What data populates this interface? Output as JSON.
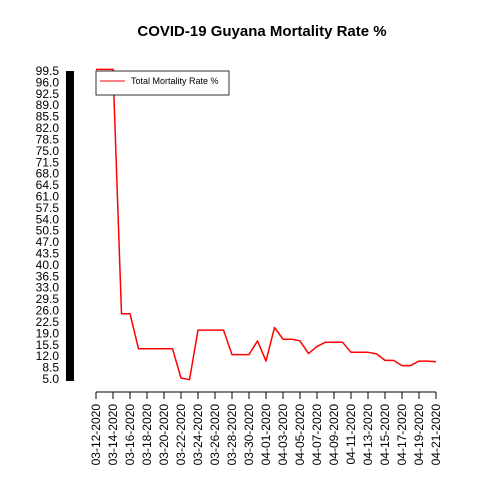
{
  "chart_data": {
    "type": "line",
    "title": "COVID-19 Guyana Mortality Rate %",
    "xlabel": "",
    "ylabel": "",
    "x": [
      "03-12-2020",
      "03-13-2020",
      "03-14-2020",
      "03-15-2020",
      "03-16-2020",
      "03-17-2020",
      "03-18-2020",
      "03-19-2020",
      "03-20-2020",
      "03-21-2020",
      "03-22-2020",
      "03-23-2020",
      "03-24-2020",
      "03-25-2020",
      "03-26-2020",
      "03-27-2020",
      "03-28-2020",
      "03-29-2020",
      "03-30-2020",
      "03-31-2020",
      "04-01-2020",
      "04-02-2020",
      "04-03-2020",
      "04-04-2020",
      "04-05-2020",
      "04-06-2020",
      "04-07-2020",
      "04-08-2020",
      "04-09-2020",
      "04-10-2020",
      "04-11-2020",
      "04-12-2020",
      "04-13-2020",
      "04-14-2020",
      "04-15-2020",
      "04-16-2020",
      "04-17-2020",
      "04-18-2020",
      "04-19-2020",
      "04-20-2020",
      "04-21-2020"
    ],
    "x_tick_labels": [
      "03-12-2020",
      "03-14-2020",
      "03-16-2020",
      "03-18-2020",
      "03-20-2020",
      "03-22-2020",
      "03-24-2020",
      "03-26-2020",
      "03-28-2020",
      "03-30-2020",
      "04-01-2020",
      "04-03-2020",
      "04-05-2020",
      "04-07-2020",
      "04-09-2020",
      "04-11-2020",
      "04-13-2020",
      "04-15-2020",
      "04-17-2020",
      "04-19-2020",
      "04-21-2020"
    ],
    "y_ticks": [
      "5.0",
      "8.5",
      "12.0",
      "15.5",
      "19.0",
      "22.5",
      "26.0",
      "29.5",
      "33.0",
      "36.5",
      "40.0",
      "43.5",
      "47.0",
      "50.5",
      "54.0",
      "57.5",
      "61.0",
      "64.5",
      "68.0",
      "71.5",
      "75.0",
      "78.5",
      "82.0",
      "85.5",
      "89.0",
      "92.5",
      "96.0",
      "99.5"
    ],
    "ylim": [
      5.0,
      99.5
    ],
    "series": [
      {
        "name": "Total Mortality Rate %",
        "color": "#ff0000",
        "values": [
          100,
          100,
          100,
          25,
          25,
          14.3,
          14.3,
          14.3,
          14.3,
          14.3,
          5.3,
          4.8,
          20,
          20,
          20,
          20,
          12.5,
          12.5,
          12.5,
          16.7,
          10.5,
          20.8,
          17.2,
          17.2,
          16.7,
          12.8,
          15,
          16.3,
          16.3,
          16.3,
          13.2,
          13.2,
          13.2,
          12.7,
          10.7,
          10.7,
          9.1,
          9.1,
          10.5,
          10.5,
          10.3
        ]
      }
    ],
    "legend": {
      "position": "top-left",
      "entries": [
        "Total Mortality Rate %"
      ]
    },
    "grid": false
  }
}
